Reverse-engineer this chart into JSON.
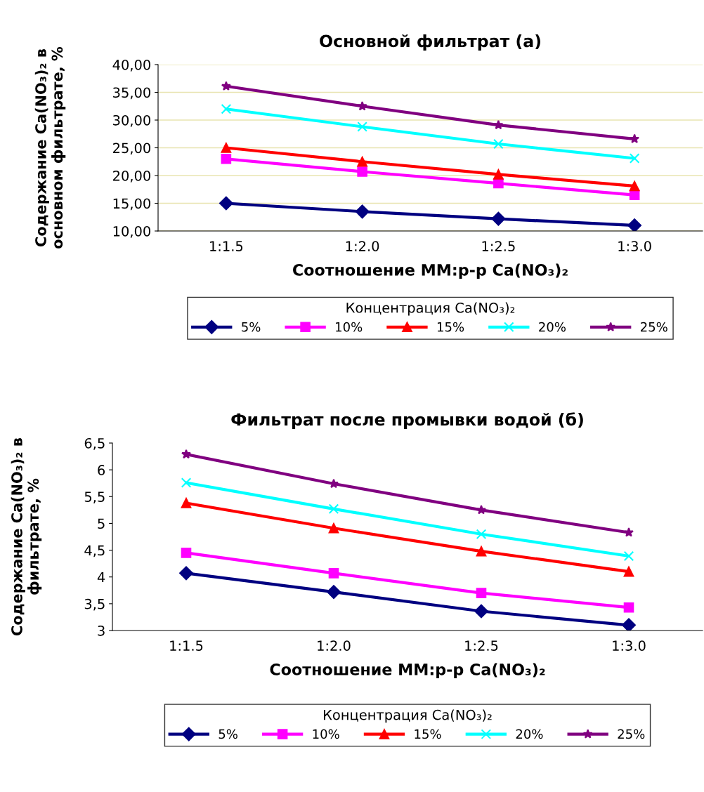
{
  "chart_data": [
    {
      "type": "line",
      "title": "Основной фильтрат (а)",
      "xlabel": "Соотношение ММ:р-р Ca(NO₃)₂",
      "ylabel": "Содержание Ca(NO₃)₂ в\nосновном фильтрате, %",
      "legend_title": "Концентрация Ca(NO₃)₂",
      "categories": [
        "1:1.5",
        "1:2.0",
        "1:2.5",
        "1:3.0"
      ],
      "ylim": [
        10,
        40
      ],
      "yticks": [
        {
          "value": 10,
          "label": "10,00"
        },
        {
          "value": 15,
          "label": "15,00"
        },
        {
          "value": 20,
          "label": "20,00"
        },
        {
          "value": 25,
          "label": "25,00"
        },
        {
          "value": 30,
          "label": "30,00"
        },
        {
          "value": 35,
          "label": "35,00"
        },
        {
          "value": 40,
          "label": "40,00"
        }
      ],
      "grid": "y",
      "legend": "bottom",
      "series": [
        {
          "name": "5%",
          "color": "#000080",
          "marker": "diamond",
          "values": [
            15.0,
            13.5,
            12.2,
            11.0
          ]
        },
        {
          "name": "10%",
          "color": "#ff00ff",
          "marker": "square",
          "values": [
            23.0,
            20.7,
            18.6,
            16.5
          ]
        },
        {
          "name": "15%",
          "color": "#ff0000",
          "marker": "triangle",
          "values": [
            25.0,
            22.5,
            20.2,
            18.1
          ]
        },
        {
          "name": "20%",
          "color": "#00ffff",
          "marker": "cross",
          "values": [
            32.0,
            28.8,
            25.7,
            23.1
          ]
        },
        {
          "name": "25%",
          "color": "#800080",
          "marker": "star",
          "values": [
            36.1,
            32.5,
            29.1,
            26.6
          ]
        }
      ]
    },
    {
      "type": "line",
      "title": "Фильтрат после промывки водой (б)",
      "xlabel": "Соотношение ММ:р-р Ca(NO₃)₂",
      "ylabel": "Содержание Ca(NO₃)₂ в\nфильтрате, %",
      "legend_title": "Концентрация Ca(NO₃)₂",
      "categories": [
        "1:1.5",
        "1:2.0",
        "1:2.5",
        "1:3.0"
      ],
      "ylim": [
        3,
        6.5
      ],
      "yticks": [
        3,
        {
          "value": 3.5,
          "label": "3,5"
        },
        4,
        {
          "value": 4.5,
          "label": "4,5"
        },
        5,
        {
          "value": 5.5,
          "label": "5,5"
        },
        6,
        {
          "value": 6.5,
          "label": "6,5"
        }
      ],
      "grid": false,
      "legend": "bottom",
      "series": [
        {
          "name": "5%",
          "color": "#000080",
          "marker": "diamond",
          "values": [
            4.07,
            3.72,
            3.36,
            3.1
          ]
        },
        {
          "name": "10%",
          "color": "#ff00ff",
          "marker": "square",
          "values": [
            4.45,
            4.07,
            3.7,
            3.43
          ]
        },
        {
          "name": "15%",
          "color": "#ff0000",
          "marker": "triangle",
          "values": [
            5.38,
            4.91,
            4.48,
            4.1
          ]
        },
        {
          "name": "20%",
          "color": "#00ffff",
          "marker": "cross",
          "values": [
            5.76,
            5.27,
            4.8,
            4.39
          ]
        },
        {
          "name": "25%",
          "color": "#800080",
          "marker": "star",
          "values": [
            6.29,
            5.74,
            5.25,
            4.83
          ]
        }
      ]
    }
  ]
}
